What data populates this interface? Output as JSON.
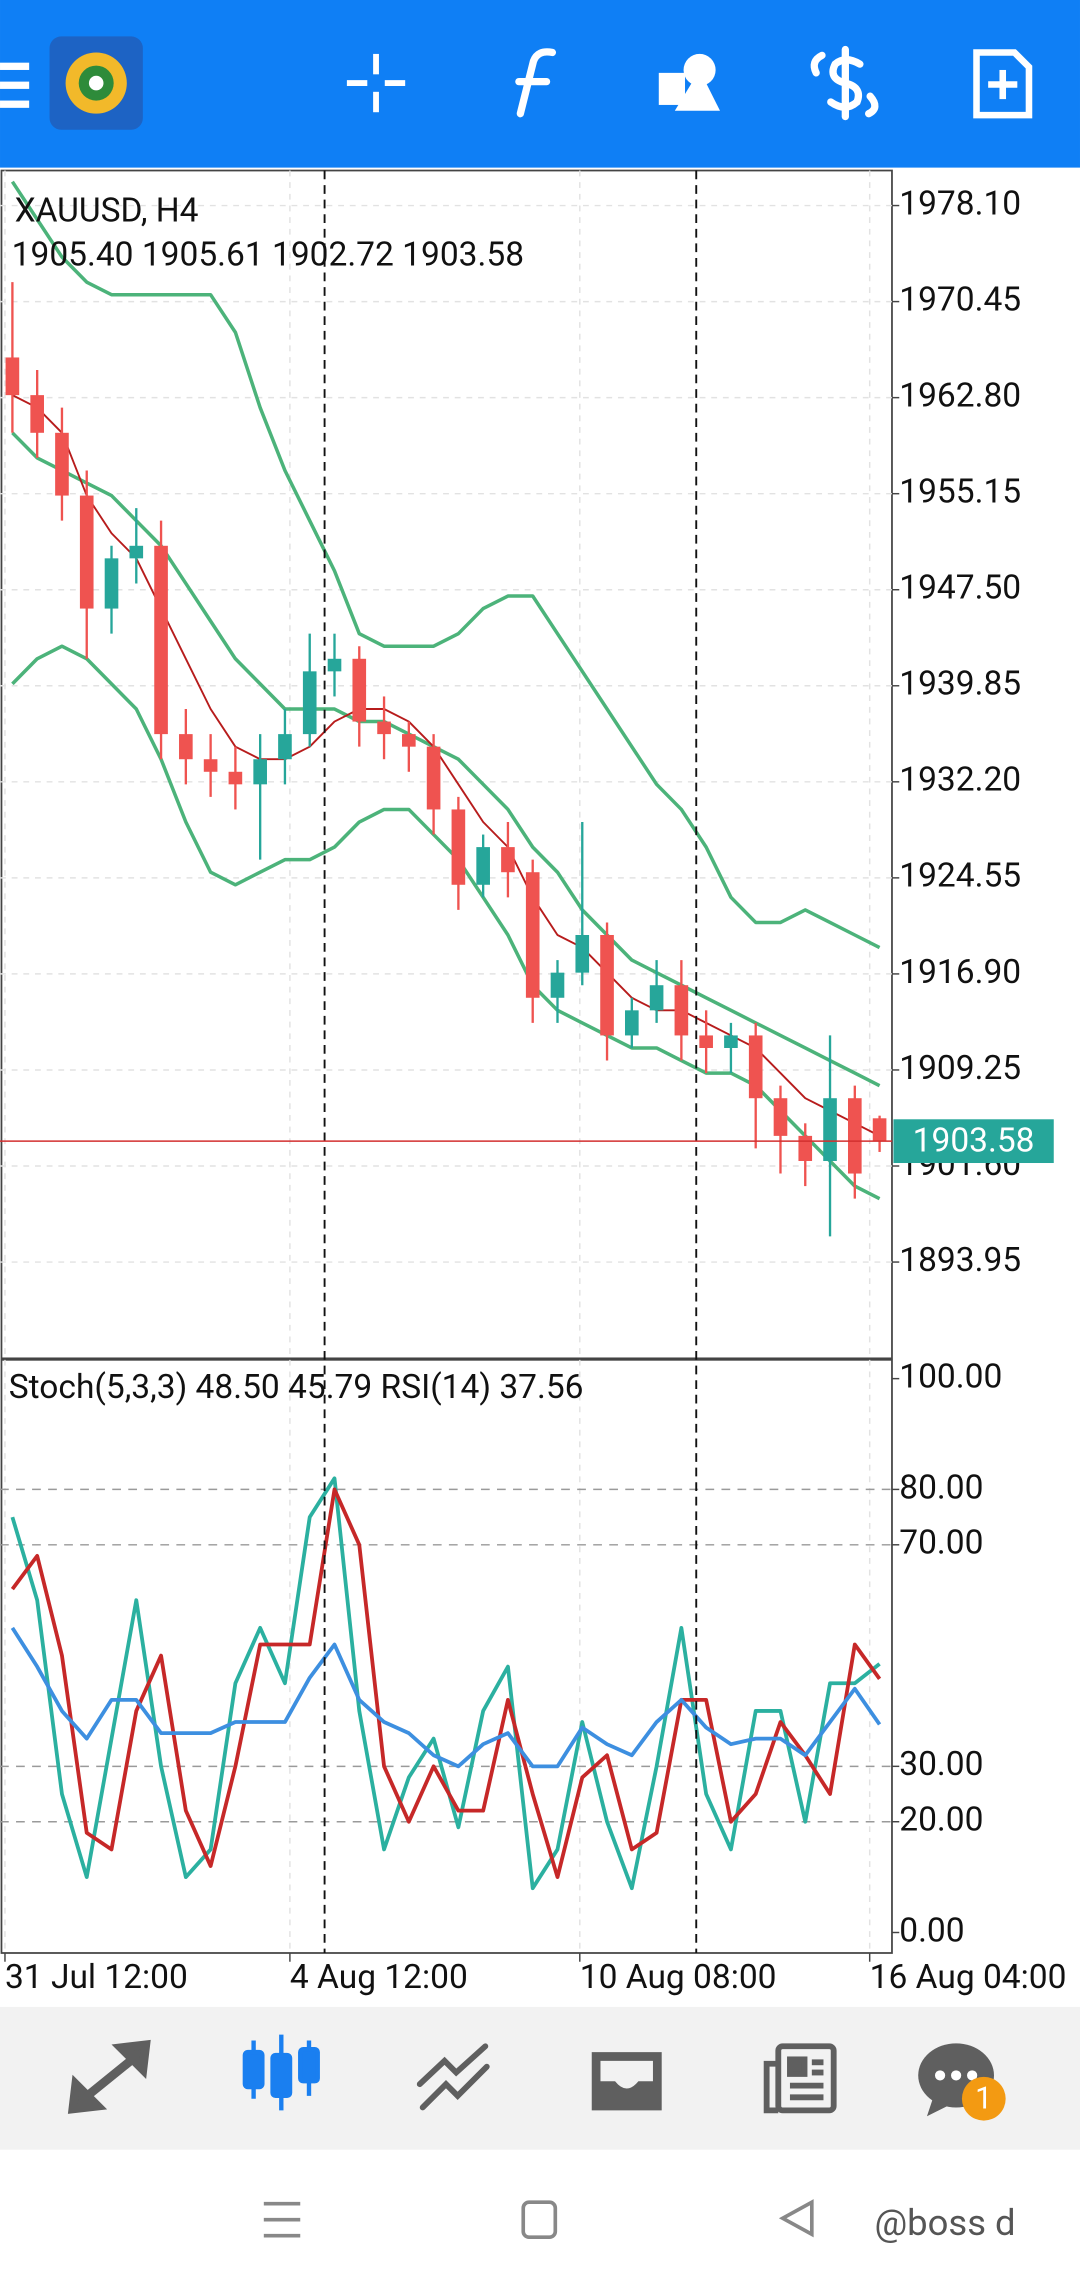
{
  "chart_data": [
    {
      "type": "candlestick",
      "symbol": "XAUUSD, H4",
      "quote": "1905.40 1905.61 1902.72 1903.58",
      "xlim": [
        -0.5,
        35.5
      ],
      "xticks": [
        {
          "value": -0.3,
          "label": "31 Jul 12:00"
        },
        {
          "value": 11.2,
          "label": "4 Aug 12:00"
        },
        {
          "value": 22.9,
          "label": "10 Aug 08:00"
        },
        {
          "value": 34.6,
          "label": "16 Aug 04:00"
        }
      ],
      "separators": [
        12.6,
        27.6
      ],
      "ylim": [
        1886.28,
        1980.89
      ],
      "yticks": [
        {
          "value": 1978.1,
          "label": "1978.10"
        },
        1970.45,
        {
          "value": 1962.8,
          "label": "1962.80"
        },
        1955.15,
        {
          "value": 1947.5,
          "label": "1947.50"
        },
        1939.85,
        {
          "value": 1932.2,
          "label": "1932.20"
        },
        1924.55,
        {
          "value": 1916.9,
          "label": "1916.90"
        },
        1909.25,
        {
          "value": 1901.6,
          "label": "1901.60"
        },
        1893.95
      ],
      "grid": true,
      "up_color": "#26a69a",
      "down_color": "#ef5350",
      "current_price": 1903.58,
      "current_price_color": "#26a69a",
      "open": [
        1966,
        1963,
        1960,
        1955,
        1946,
        1950,
        1951,
        1936,
        1934,
        1933,
        1932,
        1934,
        1936,
        1941,
        1942,
        1937,
        1936,
        1935,
        1930,
        1924,
        1927,
        1925,
        1915,
        1917,
        1920,
        1912,
        1914,
        1916,
        1912,
        1911,
        1912,
        1907,
        1904,
        1902,
        1907,
        1905.4
      ],
      "high": [
        1972,
        1965,
        1962,
        1957,
        1951,
        1954,
        1953,
        1938,
        1936,
        1935,
        1936,
        1938,
        1944,
        1944,
        1943,
        1939,
        1937,
        1936,
        1931,
        1928,
        1929,
        1926,
        1918,
        1929,
        1921,
        1915,
        1918,
        1918,
        1914,
        1913,
        1913,
        1908,
        1905,
        1912,
        1908,
        1905.61
      ],
      "low": [
        1960,
        1958,
        1953,
        1942,
        1944,
        1948,
        1934,
        1932,
        1931,
        1930,
        1926,
        1932,
        1935,
        1939,
        1935,
        1934,
        1933,
        1928,
        1922,
        1923,
        1923,
        1913,
        1913,
        1916,
        1910,
        1911,
        1913,
        1910,
        1909,
        1909,
        1903,
        1901,
        1900,
        1896,
        1899,
        1902.72
      ],
      "close": [
        1963,
        1960,
        1955,
        1946,
        1950,
        1951,
        1936,
        1934,
        1933,
        1932,
        1934,
        1936,
        1941,
        1942,
        1937,
        1936,
        1935,
        1930,
        1924,
        1927,
        1925,
        1915,
        1917,
        1920,
        1912,
        1914,
        1916,
        1912,
        1911,
        1912,
        1907,
        1904,
        1902,
        1907,
        1901,
        1903.58
      ],
      "series": [
        {
          "color": "#4cb37a",
          "values": [
            1980,
            1977,
            1974,
            1972,
            1971,
            1971,
            1971,
            1971,
            1971,
            1968,
            1962,
            1957,
            1953,
            1949,
            1944,
            1943,
            1943,
            1943,
            1944,
            1946,
            1947,
            1947,
            1944,
            1941,
            1938,
            1935,
            1932,
            1930,
            1927,
            1923,
            1921,
            1921,
            1922,
            1921,
            1920,
            1919
          ]
        },
        {
          "color": "#4cb37a",
          "values": [
            1960,
            1958,
            1957,
            1956,
            1955,
            1953,
            1951,
            1948,
            1945,
            1942,
            1940,
            1938,
            1938,
            1938,
            1937,
            1937,
            1936,
            1935,
            1934,
            1932,
            1930,
            1927,
            1925,
            1922,
            1920,
            1918,
            1917,
            1916,
            1915,
            1914,
            1913,
            1912,
            1911,
            1910,
            1909,
            1908
          ]
        },
        {
          "color": "#4cb37a",
          "values": [
            1940,
            1942,
            1943,
            1942,
            1940,
            1938,
            1934,
            1929,
            1925,
            1924,
            1925,
            1926,
            1926,
            1927,
            1929,
            1930,
            1930,
            1928,
            1926,
            1923,
            1920,
            1916,
            1914,
            1913,
            1912,
            1911,
            1911,
            1910,
            1909,
            1909,
            1908,
            1906,
            1904,
            1902,
            1900,
            1899
          ]
        },
        {
          "color": "#b71c1c",
          "values": [
            1963,
            1962,
            1960,
            1955,
            1952,
            1950,
            1946,
            1942,
            1938,
            1935,
            1934,
            1934,
            1935,
            1937,
            1938,
            1938,
            1937,
            1935,
            1932,
            1929,
            1927,
            1923,
            1920,
            1919,
            1917,
            1915,
            1914,
            1914,
            1913,
            1912,
            1911,
            1909,
            1907,
            1906,
            1905,
            1904
          ]
        }
      ]
    },
    {
      "type": "line",
      "label": "Stoch(5,3,3) 48.50 45.79 RSI(14) 37.56",
      "ylim": [
        -3.7,
        103.4
      ],
      "yticks": [
        {
          "value": 100,
          "label": "100.00"
        },
        {
          "value": 80,
          "label": "80.00"
        },
        {
          "value": 70,
          "label": "70.00"
        },
        {
          "value": 30,
          "label": "30.00"
        },
        {
          "value": 20,
          "label": "20.00"
        },
        {
          "value": 0,
          "label": "0.00"
        }
      ],
      "levels": [
        80,
        70,
        30,
        20
      ],
      "series": [
        {
          "color": "#2bb0a0",
          "values": [
            75,
            60,
            25,
            10,
            35,
            60,
            30,
            10,
            15,
            45,
            55,
            45,
            75,
            82,
            40,
            15,
            28,
            35,
            19,
            40,
            48,
            8,
            15,
            38,
            20,
            8,
            30,
            55,
            25,
            15,
            40,
            40,
            20,
            45,
            45,
            48.5
          ]
        },
        {
          "color": "#c62828",
          "values": [
            62,
            68,
            50,
            18,
            15,
            40,
            50,
            22,
            12,
            30,
            52,
            52,
            52,
            80,
            70,
            30,
            20,
            30,
            22,
            22,
            42,
            25,
            10,
            28,
            32,
            15,
            18,
            42,
            42,
            20,
            25,
            38,
            32,
            25,
            52,
            45.79
          ]
        },
        {
          "color": "#3d8fe0",
          "values": [
            55,
            48,
            40,
            35,
            42,
            42,
            36,
            36,
            36,
            38,
            38,
            38,
            46,
            52,
            42,
            38,
            36,
            32,
            30,
            34,
            36,
            30,
            30,
            37,
            34,
            32,
            38,
            42,
            37,
            34,
            35,
            35,
            32,
            38,
            44,
            37.56
          ]
        }
      ]
    }
  ],
  "chat_badge": 1,
  "watermark": "@boss d"
}
